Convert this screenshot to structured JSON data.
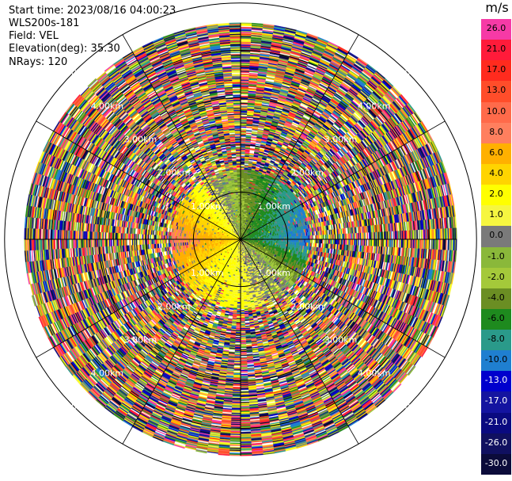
{
  "header": {
    "start_time": "Start time: 2023/08/16 04:00:23",
    "instrument": "WLS200s-181",
    "field": "Field: VEL",
    "elevation": "Elevation(deg): 35.30",
    "nrays": "NRays: 120"
  },
  "colorbar": {
    "unit": "m/s",
    "levels": [
      {
        "label": "26.0",
        "color": "#f63aa6",
        "text_color": "#000000"
      },
      {
        "label": "21.0",
        "color": "#ff1b3a",
        "text_color": "#000000"
      },
      {
        "label": "17.0",
        "color": "#ff2b1e",
        "text_color": "#000000"
      },
      {
        "label": "13.0",
        "color": "#ff4d2a",
        "text_color": "#000000"
      },
      {
        "label": "10.0",
        "color": "#ff6a4a",
        "text_color": "#000000"
      },
      {
        "label": "8.0",
        "color": "#ff7f5e",
        "text_color": "#000000"
      },
      {
        "label": "6.0",
        "color": "#ffb000",
        "text_color": "#000000"
      },
      {
        "label": "4.0",
        "color": "#ffd400",
        "text_color": "#000000"
      },
      {
        "label": "2.0",
        "color": "#ffff00",
        "text_color": "#000000"
      },
      {
        "label": "1.0",
        "color": "#f6f640",
        "text_color": "#000000"
      },
      {
        "label": "0.0",
        "color": "#7a7a7a",
        "text_color": "#000000"
      },
      {
        "label": "-1.0",
        "color": "#8ab83a",
        "text_color": "#000000"
      },
      {
        "label": "-2.0",
        "color": "#a4c93a",
        "text_color": "#000000"
      },
      {
        "label": "-4.0",
        "color": "#6b8e23",
        "text_color": "#000000"
      },
      {
        "label": "-6.0",
        "color": "#1e8a1e",
        "text_color": "#000000"
      },
      {
        "label": "-8.0",
        "color": "#2a9a8a",
        "text_color": "#000000"
      },
      {
        "label": "-10.0",
        "color": "#1f7fd0",
        "text_color": "#000000"
      },
      {
        "label": "-13.0",
        "color": "#0000cd",
        "text_color": "#ffffff"
      },
      {
        "label": "-17.0",
        "color": "#1414a0",
        "text_color": "#ffffff"
      },
      {
        "label": "-21.0",
        "color": "#0a0a80",
        "text_color": "#ffffff"
      },
      {
        "label": "-26.0",
        "color": "#101060",
        "text_color": "#ffffff"
      },
      {
        "label": "-30.0",
        "color": "#0b0b3a",
        "text_color": "#ffffff"
      }
    ]
  },
  "chart_data": {
    "type": "heatmap",
    "projection": "polar PPI",
    "field": "VEL",
    "unit": "m/s",
    "elevation_deg": 35.3,
    "nrays": 120,
    "range_rings": [
      {
        "label": "1.00km",
        "range_km": 1.0
      },
      {
        "label": "2.00km",
        "range_km": 2.0
      },
      {
        "label": "3.00km",
        "range_km": 3.0
      },
      {
        "label": "4.00km",
        "range_km": 4.0
      },
      {
        "label": "5.00km",
        "range_km": 5.0
      }
    ],
    "max_range_km": 6.5,
    "noisy_beyond_km": 2.1,
    "velocity_pattern": [
      {
        "sector": "west",
        "azimuth_deg": 270,
        "velocity_ms": 8.0
      },
      {
        "sector": "southwest",
        "azimuth_deg": 225,
        "velocity_ms": 4.0
      },
      {
        "sector": "south",
        "azimuth_deg": 180,
        "velocity_ms": 2.0
      },
      {
        "sector": "north",
        "azimuth_deg": 0,
        "velocity_ms": -2.0
      },
      {
        "sector": "northeast",
        "azimuth_deg": 45,
        "velocity_ms": -6.0
      },
      {
        "sector": "east",
        "azimuth_deg": 90,
        "velocity_ms": -8.0
      },
      {
        "sector": "southeast",
        "azimuth_deg": 135,
        "velocity_ms": 0.0
      }
    ],
    "crosshair": true,
    "spokes_deg": [
      30,
      60,
      120,
      150,
      210,
      240,
      300,
      330
    ]
  }
}
